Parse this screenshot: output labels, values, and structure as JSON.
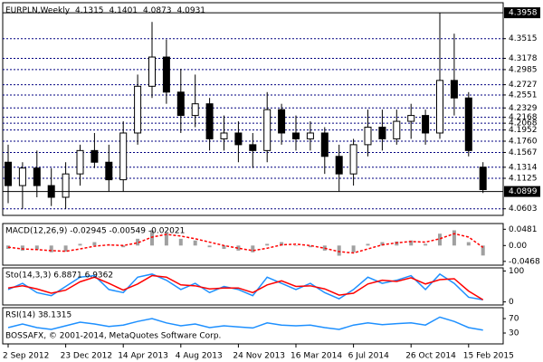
{
  "chart_data": [
    {
      "type": "candlestick",
      "title": "EURPLN,Weekly",
      "categories": [
        "2 Sep 2012",
        null,
        null,
        null,
        "23 Dec 2012",
        null,
        null,
        null,
        "14 Apr 2013",
        null,
        null,
        null,
        "4 Aug 2013",
        null,
        null,
        null,
        "24 Nov 2013",
        null,
        null,
        null,
        "16 Mar 2014",
        null,
        null,
        null,
        "6 Jul 2014",
        null,
        null,
        null,
        "26 Oct 2014",
        null,
        null,
        null,
        "15 Feb 2015",
        null
      ],
      "open": [
        4.14,
        4.1,
        4.13,
        4.1,
        4.08,
        4.12,
        4.16,
        4.14,
        4.11,
        4.19,
        4.27,
        4.32,
        4.26,
        4.22,
        4.24,
        4.18,
        4.19,
        4.17,
        4.16,
        4.23,
        4.19,
        4.18,
        4.19,
        4.15,
        4.12,
        4.17,
        4.2,
        4.18,
        4.21,
        4.22,
        4.19,
        4.28,
        4.25,
        4.1315
      ],
      "high": [
        4.17,
        4.14,
        4.16,
        4.13,
        4.14,
        4.17,
        4.19,
        4.17,
        4.21,
        4.29,
        4.38,
        4.35,
        4.3,
        4.29,
        4.25,
        4.22,
        4.21,
        4.19,
        4.26,
        4.24,
        4.22,
        4.21,
        4.2,
        4.17,
        4.18,
        4.23,
        4.23,
        4.23,
        4.24,
        4.23,
        4.3958,
        4.36,
        4.26,
        4.1401
      ],
      "low": [
        4.07,
        4.06,
        4.08,
        4.065,
        4.06,
        4.1,
        4.13,
        4.09,
        4.09,
        4.17,
        4.25,
        4.24,
        4.19,
        4.2,
        4.16,
        4.16,
        4.14,
        4.13,
        4.14,
        4.17,
        4.16,
        4.16,
        4.12,
        4.09,
        4.1,
        4.15,
        4.16,
        4.17,
        4.18,
        4.17,
        4.18,
        4.22,
        4.15,
        4.0873
      ],
      "close": [
        4.1,
        4.13,
        4.1,
        4.08,
        4.12,
        4.16,
        4.14,
        4.11,
        4.19,
        4.27,
        4.32,
        4.26,
        4.22,
        4.24,
        4.18,
        4.19,
        4.17,
        4.16,
        4.23,
        4.19,
        4.18,
        4.19,
        4.15,
        4.12,
        4.17,
        4.2,
        4.18,
        4.21,
        4.22,
        4.19,
        4.28,
        4.25,
        4.16,
        4.0931
      ],
      "bull_color": "#ffffff",
      "bear_color": "#000000",
      "ylim": [
        4.049,
        4.413
      ],
      "yticks": [
        4.3515,
        4.3178,
        4.2985,
        4.2727,
        4.2551,
        4.2329,
        4.2168,
        4.2068,
        4.1952,
        {
          "value": 4.176,
          "label": "4.1760"
        },
        4.1567,
        4.1314,
        4.1125,
        4.0603
      ],
      "period_high": 4.3958,
      "bid": 4.0899,
      "grid": true
    },
    {
      "type": "macd",
      "title": "MACD(12,26,9) -0.02945 -0.00549 -0.02021",
      "series": [
        {
          "style": "bar",
          "color": "#a0a0a0",
          "values": [
            -0.01,
            -0.015,
            -0.012,
            -0.02,
            -0.018,
            0.005,
            0.01,
            0.002,
            -0.005,
            0.02,
            0.045,
            0.035,
            0.02,
            0.015,
            -0.005,
            -0.01,
            -0.015,
            -0.02,
            0.005,
            0.01,
            0.0,
            -0.005,
            -0.015,
            -0.03,
            -0.02,
            0.005,
            0.01,
            0.012,
            0.015,
            0.005,
            0.035,
            0.045,
            0.01,
            -0.02945
          ]
        },
        {
          "style": "line",
          "color": "#ff0000",
          "values": [
            -0.005,
            -0.01,
            -0.012,
            -0.015,
            -0.017,
            -0.01,
            -0.002,
            0.002,
            0.0,
            0.008,
            0.025,
            0.033,
            0.028,
            0.02,
            0.01,
            0.0,
            -0.008,
            -0.015,
            -0.008,
            0.002,
            0.004,
            0.0,
            -0.008,
            -0.018,
            -0.022,
            -0.01,
            0.002,
            0.008,
            0.012,
            0.01,
            0.02,
            0.035,
            0.025,
            -0.00549
          ]
        }
      ],
      "ylim": [
        -0.058,
        0.065
      ],
      "yticks": [
        0.0481,
        {
          "value": 0,
          "label": "0.00"
        },
        -0.0468
      ]
    },
    {
      "type": "line",
      "title": "Sto(14,3,3) 6.8871 6.9362",
      "series": [
        {
          "color": "#1e90ff",
          "values": [
            40,
            60,
            30,
            20,
            50,
            80,
            85,
            40,
            30,
            80,
            90,
            70,
            40,
            60,
            30,
            50,
            40,
            20,
            80,
            60,
            40,
            60,
            30,
            10,
            40,
            80,
            60,
            70,
            85,
            40,
            90,
            60,
            15,
            6.8871
          ]
        },
        {
          "color": "#ff0000",
          "values": [
            45,
            52,
            42,
            28,
            38,
            65,
            80,
            60,
            38,
            58,
            85,
            80,
            55,
            52,
            42,
            45,
            45,
            30,
            55,
            68,
            50,
            52,
            42,
            22,
            28,
            58,
            70,
            66,
            78,
            58,
            72,
            75,
            35,
            6.9362
          ]
        }
      ],
      "ylim": [
        -10,
        110
      ],
      "yticks": [
        100,
        0
      ]
    },
    {
      "type": "line",
      "title": "RSI(14) 38.1315",
      "series": [
        {
          "color": "#1e90ff",
          "values": [
            45,
            55,
            45,
            40,
            50,
            60,
            55,
            48,
            52,
            62,
            70,
            58,
            50,
            55,
            45,
            50,
            47,
            44,
            58,
            52,
            50,
            52,
            45,
            40,
            52,
            58,
            53,
            56,
            58,
            52,
            74,
            62,
            45,
            38.1315
          ]
        }
      ],
      "ylim": [
        0,
        100
      ],
      "yticks": [
        70,
        30
      ]
    }
  ],
  "footer": "BOSSAFX, © 2001-2014, MetaQuotes Software Corp."
}
